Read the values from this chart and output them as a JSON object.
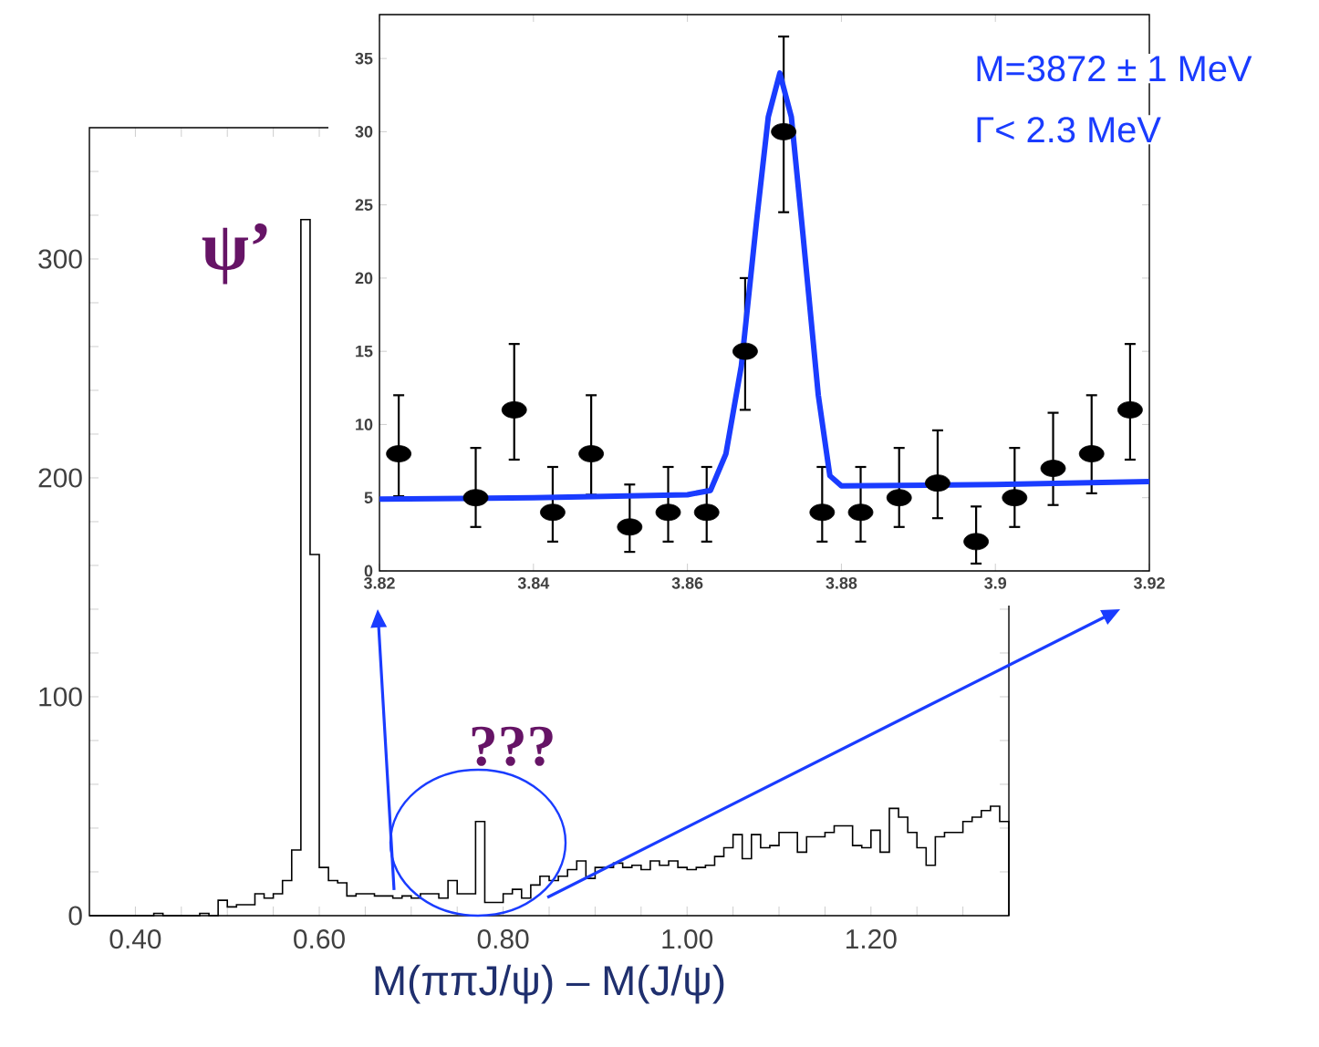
{
  "chart_data": [
    {
      "type": "histogram",
      "xlabel": "M(ππJ/ψ) – M(J/ψ)",
      "xlim": [
        0.35,
        1.35
      ],
      "ylim": [
        0,
        360
      ],
      "xticks": [
        {
          "value": 0.4,
          "label": "0.40"
        },
        {
          "value": 0.45,
          "label": null
        },
        {
          "value": 0.5,
          "label": null
        },
        {
          "value": 0.55,
          "label": null
        },
        {
          "value": 0.6,
          "label": "0.60"
        },
        {
          "value": 0.65,
          "label": null
        },
        {
          "value": 0.7,
          "label": null
        },
        {
          "value": 0.75,
          "label": null
        },
        {
          "value": 0.8,
          "label": "0.80"
        },
        {
          "value": 0.85,
          "label": null
        },
        {
          "value": 0.9,
          "label": null
        },
        {
          "value": 0.95,
          "label": null
        },
        {
          "value": 1.0,
          "label": "1.00"
        },
        {
          "value": 1.05,
          "label": null
        },
        {
          "value": 1.1,
          "label": null
        },
        {
          "value": 1.15,
          "label": null
        },
        {
          "value": 1.2,
          "label": "1.20"
        },
        {
          "value": 1.25,
          "label": null
        },
        {
          "value": 1.3,
          "label": null
        }
      ],
      "yticks": [
        0,
        {
          "value": 20,
          "label": null
        },
        {
          "value": 40,
          "label": null
        },
        {
          "value": 60,
          "label": null
        },
        {
          "value": 80,
          "label": null
        },
        100,
        {
          "value": 120,
          "label": null
        },
        {
          "value": 140,
          "label": null
        },
        {
          "value": 160,
          "label": null
        },
        {
          "value": 180,
          "label": null
        },
        200,
        {
          "value": 220,
          "label": null
        },
        {
          "value": 240,
          "label": null
        },
        {
          "value": 260,
          "label": null
        },
        {
          "value": 280,
          "label": null
        },
        300,
        {
          "value": 320,
          "label": null
        },
        {
          "value": 340,
          "label": null
        }
      ],
      "color": "#000000",
      "bins": [
        0.35,
        0.36,
        0.37,
        0.38,
        0.39,
        0.4,
        0.41,
        0.42,
        0.43,
        0.44,
        0.45,
        0.46,
        0.47,
        0.48,
        0.49,
        0.5,
        0.51,
        0.52,
        0.53,
        0.54,
        0.55,
        0.56,
        0.57,
        0.58,
        0.59,
        0.6,
        0.61,
        0.62,
        0.63,
        0.64,
        0.65,
        0.66,
        0.67,
        0.68,
        0.69,
        0.7,
        0.71,
        0.72,
        0.73,
        0.74,
        0.75,
        0.76,
        0.77,
        0.78,
        0.79,
        0.8,
        0.81,
        0.82,
        0.83,
        0.84,
        0.85,
        0.86,
        0.87,
        0.88,
        0.89,
        0.9,
        0.91,
        0.92,
        0.93,
        0.94,
        0.95,
        0.96,
        0.97,
        0.98,
        0.99,
        1.0,
        1.01,
        1.02,
        1.03,
        1.04,
        1.05,
        1.06,
        1.07,
        1.08,
        1.09,
        1.1,
        1.11,
        1.12,
        1.13,
        1.14,
        1.15,
        1.16,
        1.17,
        1.18,
        1.19,
        1.2,
        1.21,
        1.22,
        1.23,
        1.24,
        1.25,
        1.26,
        1.27,
        1.28,
        1.29,
        1.3,
        1.31,
        1.32,
        1.33,
        1.34,
        1.35
      ],
      "values": [
        0,
        0,
        0,
        0,
        0,
        0,
        0,
        1,
        0,
        0,
        0,
        0,
        1,
        0,
        7,
        4,
        5,
        5,
        10,
        8,
        10,
        16,
        30,
        318,
        165,
        22,
        16,
        15,
        9,
        10,
        10,
        9,
        9,
        8,
        9,
        8,
        10,
        10,
        8,
        16,
        10,
        10,
        43,
        6,
        6,
        10,
        12,
        8,
        14,
        18,
        16,
        18,
        21,
        25,
        17,
        22,
        22,
        24,
        22,
        23,
        21,
        25,
        23,
        25,
        22,
        21,
        22,
        23,
        27,
        31,
        37,
        26,
        37,
        31,
        32,
        38,
        38,
        29,
        36,
        36,
        38,
        41,
        41,
        32,
        31,
        39,
        29,
        49,
        45,
        38,
        31,
        23,
        36,
        38,
        38,
        43,
        45,
        48,
        50,
        43
      ],
      "annotations": [
        "ψ’",
        "???"
      ]
    },
    {
      "type": "scatter",
      "xlim": [
        3.82,
        3.92
      ],
      "ylim": [
        0,
        38
      ],
      "xticks": [
        3.82,
        3.84,
        3.86,
        3.88,
        3.9,
        3.92
      ],
      "yticks": [
        0,
        5,
        10,
        15,
        20,
        25,
        30,
        35
      ],
      "annotations": [
        "M=3872 ± 1 MeV",
        "Γ< 2.3 MeV"
      ],
      "series": [
        {
          "color": "#000000",
          "marker": "circle",
          "x": [
            3.8225,
            3.8325,
            3.8375,
            3.8425,
            3.8475,
            3.8525,
            3.8575,
            3.8625,
            3.8675,
            3.8725,
            3.8775,
            3.8825,
            3.8875,
            3.8925,
            3.8975,
            3.9025,
            3.9075,
            3.9125,
            3.9175
          ],
          "values": [
            8,
            5,
            11,
            4,
            8,
            3,
            4,
            4,
            15,
            30,
            4,
            4,
            5,
            6,
            2,
            5,
            7,
            8,
            11
          ],
          "errors": [
            [
              5.1,
              12
            ],
            [
              3,
              8.4
            ],
            [
              7.6,
              15.5
            ],
            [
              2,
              7.1
            ],
            [
              5.2,
              12
            ],
            [
              1.3,
              5.9
            ],
            [
              2,
              7.1
            ],
            [
              2,
              7.1
            ],
            [
              11,
              20
            ],
            [
              24.5,
              36.5
            ],
            [
              2,
              7.1
            ],
            [
              2,
              7.1
            ],
            [
              3,
              8.4
            ],
            [
              3.6,
              9.6
            ],
            [
              0.5,
              4.4
            ],
            [
              3,
              8.4
            ],
            [
              4.5,
              10.8
            ],
            [
              5.3,
              12
            ],
            [
              7.6,
              15.5
            ]
          ]
        },
        {
          "type": "line",
          "color": "#1a3cff",
          "marker": "none",
          "x": [
            3.82,
            3.84,
            3.86,
            3.863,
            3.865,
            3.867,
            3.869,
            3.8705,
            3.872,
            3.8735,
            3.875,
            3.877,
            3.8785,
            3.88,
            3.9,
            3.92
          ],
          "values": [
            4.9,
            5,
            5.2,
            5.5,
            8,
            14,
            24,
            31,
            34,
            31,
            23,
            12,
            6.5,
            5.8,
            5.9,
            6.1
          ]
        }
      ]
    }
  ]
}
